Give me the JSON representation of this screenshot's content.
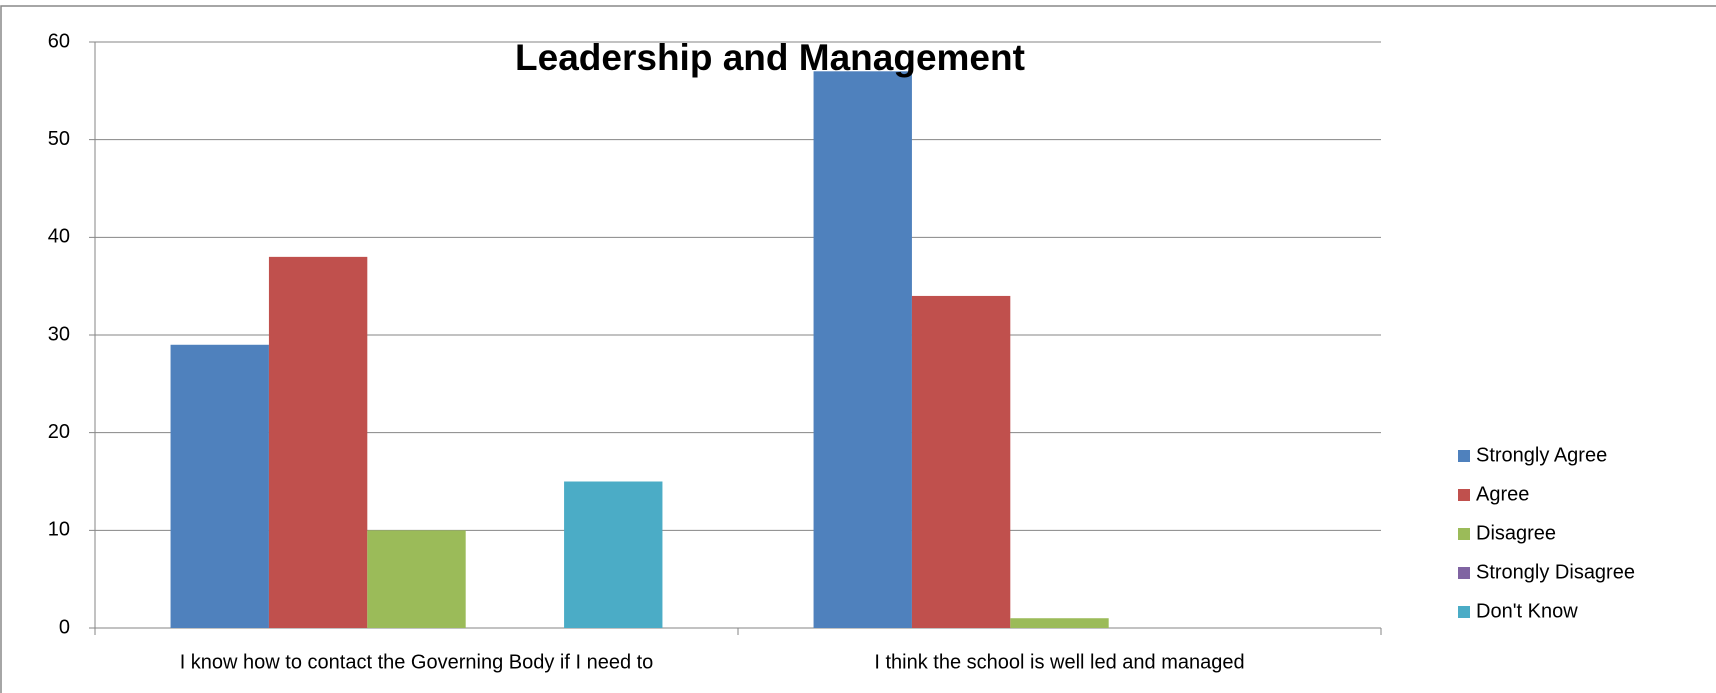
{
  "chart_data": {
    "type": "bar",
    "title": "Leadership and Management",
    "categories": [
      "I know how to contact the Governing Body if I need to",
      "I think the school is well led and managed"
    ],
    "series": [
      {
        "name": "Strongly Agree",
        "color": "#4f81bd",
        "values": [
          29,
          57
        ]
      },
      {
        "name": "Agree",
        "color": "#c0504d",
        "values": [
          38,
          34
        ]
      },
      {
        "name": "Disagree",
        "color": "#9bbb59",
        "values": [
          10,
          1
        ]
      },
      {
        "name": "Strongly Disagree",
        "color": "#8064a2",
        "values": [
          0,
          0
        ]
      },
      {
        "name": "Don't Know",
        "color": "#4bacc6",
        "values": [
          15,
          0
        ]
      }
    ],
    "ylim": [
      0,
      60
    ],
    "yticks": [
      0,
      10,
      20,
      30,
      40,
      50,
      60
    ],
    "grid": true,
    "legend": "right"
  }
}
